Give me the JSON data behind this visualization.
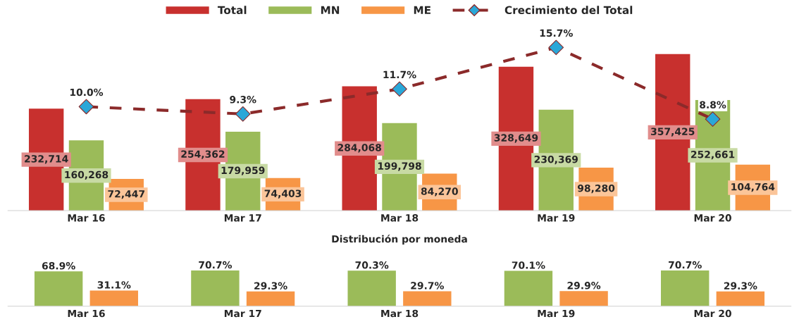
{
  "chart_data": [
    {
      "type": "bar",
      "categories": [
        "Mar 16",
        "Mar 17",
        "Mar 18",
        "Mar 19",
        "Mar 20"
      ],
      "tick_labels": "x",
      "legend": "top",
      "grid": false,
      "series": [
        {
          "name": "Total",
          "color": "#c8302e",
          "values": [
            232714,
            254362,
            284068,
            328649,
            357425
          ],
          "value_labels": [
            "232,714",
            "254,362",
            "284,068",
            "328,649",
            "357,425"
          ]
        },
        {
          "name": "MN",
          "color": "#9bbb59",
          "values": [
            160268,
            179959,
            199798,
            230369,
            252661
          ],
          "value_labels": [
            "160,268",
            "179,959",
            "199,798",
            "230,369",
            "252,661"
          ]
        },
        {
          "name": "ME",
          "color": "#f79646",
          "values": [
            72447,
            74403,
            84270,
            98280,
            104764
          ],
          "value_labels": [
            "72,447",
            "74,403",
            "84,270",
            "98,280",
            "104,764"
          ]
        },
        {
          "name": "Crecimiento del Total",
          "type": "line",
          "axis": "y2",
          "color": "#8b2a2a",
          "colors": [
            "#2aa7d8",
            "#2aa7d8",
            "#2aa7d8",
            "#2aa7d8",
            "#2aa7d8"
          ],
          "marker": "diamond",
          "line_style": "dashed",
          "values": [
            10.0,
            9.3,
            11.7,
            15.7,
            8.8
          ],
          "value_labels": [
            "10.0%",
            "9.3%",
            "11.7%",
            "15.7%",
            "8.8%"
          ]
        }
      ]
    },
    {
      "type": "bar",
      "title": "Distribución por moneda",
      "categories": [
        "Mar 16",
        "Mar 17",
        "Mar 18",
        "Mar 19",
        "Mar 20"
      ],
      "tick_labels": "x",
      "grid": false,
      "legend": false,
      "series": [
        {
          "color": "#9bbb59",
          "values": [
            68.9,
            70.7,
            70.3,
            70.1,
            70.7
          ],
          "value_labels": [
            "68.9%",
            "70.7%",
            "70.3%",
            "70.1%",
            "70.7%"
          ]
        },
        {
          "color": "#f79646",
          "values": [
            31.1,
            29.3,
            29.7,
            29.9,
            29.3
          ],
          "value_labels": [
            "31.1%",
            "29.3%",
            "29.7%",
            "29.9%",
            "29.3%"
          ]
        }
      ]
    }
  ]
}
